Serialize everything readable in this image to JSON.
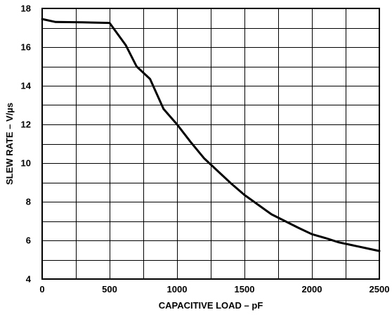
{
  "chart_data": {
    "type": "line",
    "title": "",
    "xlabel": "CAPACITIVE LOAD – pF",
    "ylabel": "SLEW RATE – V/µs",
    "xlim": [
      0,
      2500
    ],
    "ylim": [
      4,
      18
    ],
    "x_ticks": [
      0,
      500,
      1000,
      1500,
      2000,
      2500
    ],
    "y_ticks": [
      4,
      6,
      8,
      10,
      12,
      14,
      16,
      18
    ],
    "x_grid_step": 250,
    "y_grid_step": 1,
    "grid": true,
    "legend": "none",
    "series": [
      {
        "values": [
          [
            0,
            17.45
          ],
          [
            100,
            17.3
          ],
          [
            300,
            17.28
          ],
          [
            500,
            17.25
          ],
          [
            620,
            16.1
          ],
          [
            700,
            15.0
          ],
          [
            800,
            14.35
          ],
          [
            900,
            12.8
          ],
          [
            1000,
            12.0
          ],
          [
            1100,
            11.1
          ],
          [
            1200,
            10.25
          ],
          [
            1300,
            9.6
          ],
          [
            1400,
            8.95
          ],
          [
            1500,
            8.35
          ],
          [
            1600,
            7.85
          ],
          [
            1700,
            7.35
          ],
          [
            1800,
            7.0
          ],
          [
            1900,
            6.65
          ],
          [
            2000,
            6.32
          ],
          [
            2100,
            6.12
          ],
          [
            2200,
            5.9
          ],
          [
            2300,
            5.75
          ],
          [
            2400,
            5.6
          ],
          [
            2500,
            5.45
          ]
        ]
      }
    ]
  }
}
